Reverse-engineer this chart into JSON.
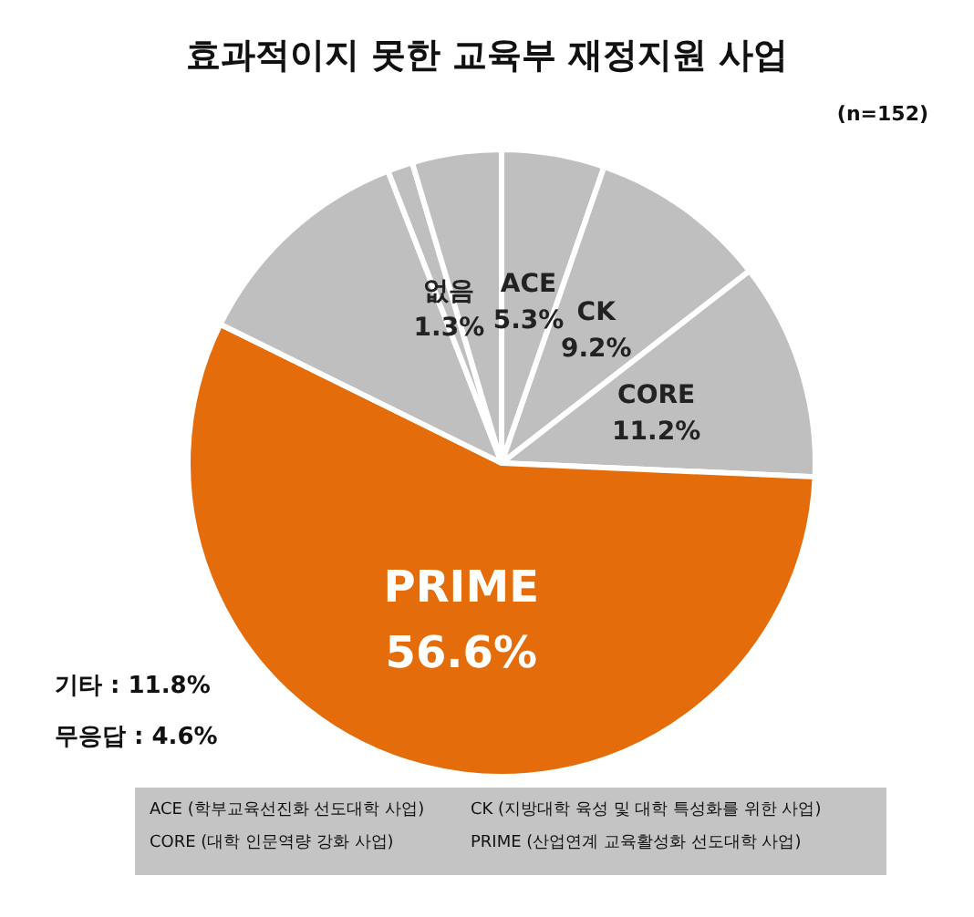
{
  "chart_data": {
    "type": "pie",
    "title": "효과적이지 못한 교육부 재정지원 사업",
    "subtitle": "(n=152)",
    "categories": [
      "ACE",
      "CK",
      "CORE",
      "PRIME",
      "기타",
      "없음",
      "무응답"
    ],
    "values": [
      5.3,
      9.2,
      11.2,
      56.6,
      11.8,
      1.3,
      4.6
    ],
    "colors": [
      "#bfbfbf",
      "#bfbfbf",
      "#bfbfbf",
      "#e46c0a",
      "#bfbfbf",
      "#bfbfbf",
      "#bfbfbf"
    ],
    "value_labels": [
      "5.3%",
      "9.2%",
      "11.2%",
      "56.6%",
      null,
      "1.3%",
      null
    ],
    "annotations": [
      {
        "text": ": 11.8%",
        "x": "기타"
      },
      {
        "text": ": 4.6%",
        "x": "무응답"
      },
      "ACE (학부교육선진화 선도대학 사업)",
      "CK (지방대학 육성 및 대학 특성화를 위한 사업)",
      "CORE (대학 인문역량 강화 사업)",
      "PRIME (산업연계 교육활성화 선도대학 사업)"
    ],
    "legend": false
  }
}
